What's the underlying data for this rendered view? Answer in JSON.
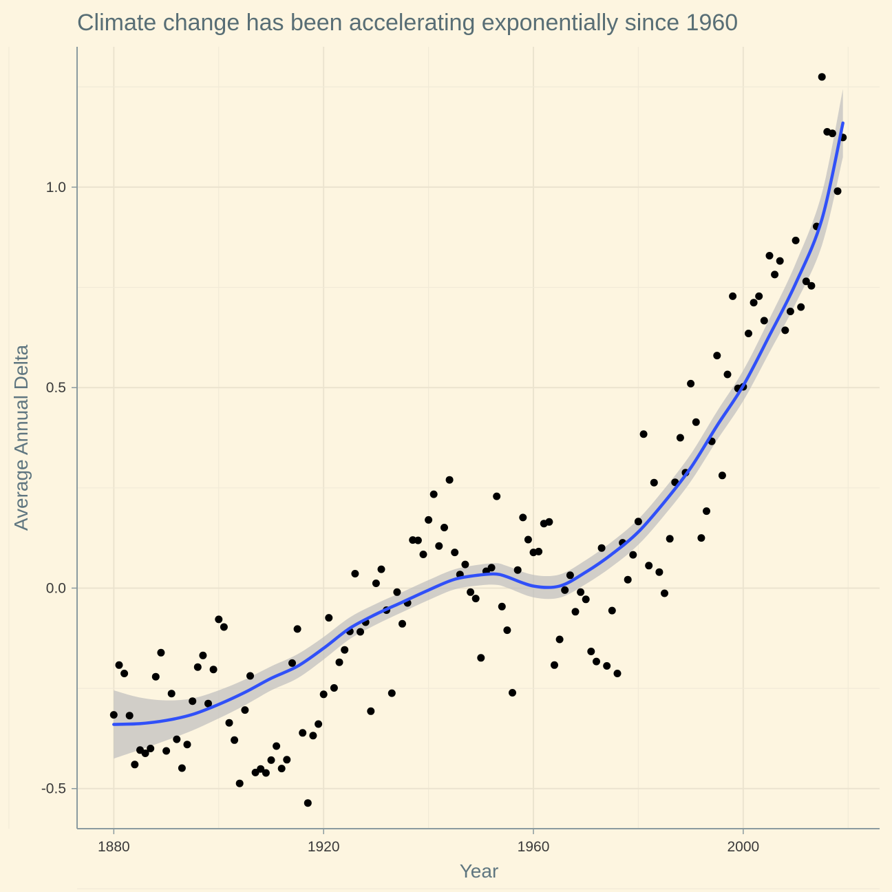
{
  "colors": {
    "background": "#fdf5e0",
    "point": "#000000",
    "smooth_line": "#3050f8",
    "ribbon": "#bdbdbd",
    "title": "#586e75"
  },
  "chart_data": {
    "type": "scatter",
    "title": "Climate change has been accelerating exponentially since 1960",
    "xlabel": "Year",
    "ylabel": "Average Annual Delta",
    "xlim": [
      1873,
      2026
    ],
    "ylim": [
      -0.6,
      1.35
    ],
    "xticks": [
      1880,
      1920,
      1960,
      2000
    ],
    "xtick_labels": [
      "1880",
      "1920",
      "1960",
      "2000"
    ],
    "yticks": [
      -0.5,
      0.0,
      0.5,
      1.0
    ],
    "ytick_labels": [
      "-0.5",
      "0.0",
      "0.5",
      "1.0"
    ],
    "grid": true,
    "series": [
      {
        "type": "scatter",
        "x": [
          1880,
          1881,
          1882,
          1883,
          1884,
          1885,
          1886,
          1887,
          1888,
          1889,
          1890,
          1891,
          1892,
          1893,
          1894,
          1895,
          1896,
          1897,
          1898,
          1899,
          1900,
          1901,
          1902,
          1903,
          1904,
          1905,
          1906,
          1907,
          1908,
          1909,
          1910,
          1911,
          1912,
          1913,
          1914,
          1915,
          1916,
          1917,
          1918,
          1919,
          1920,
          1921,
          1922,
          1923,
          1924,
          1925,
          1926,
          1927,
          1928,
          1929,
          1930,
          1931,
          1932,
          1933,
          1934,
          1935,
          1936,
          1937,
          1938,
          1939,
          1940,
          1941,
          1942,
          1943,
          1944,
          1945,
          1946,
          1947,
          1948,
          1949,
          1950,
          1951,
          1952,
          1953,
          1954,
          1955,
          1956,
          1957,
          1958,
          1959,
          1960,
          1961,
          1962,
          1963,
          1964,
          1965,
          1966,
          1967,
          1968,
          1969,
          1970,
          1971,
          1972,
          1973,
          1974,
          1975,
          1976,
          1977,
          1978,
          1979,
          1980,
          1981,
          1982,
          1983,
          1984,
          1985,
          1986,
          1987,
          1988,
          1989,
          1990,
          1991,
          1992,
          1993,
          1994,
          1995,
          1996,
          1997,
          1998,
          1999,
          2000,
          2001,
          2002,
          2003,
          2004,
          2005,
          2006,
          2007,
          2008,
          2009,
          2010,
          2011,
          2012,
          2013,
          2014,
          2015,
          2016,
          2017,
          2018,
          2019
        ],
        "y": [
          -0.316,
          -0.192,
          -0.213,
          -0.318,
          -0.44,
          -0.404,
          -0.412,
          -0.4,
          -0.221,
          -0.161,
          -0.406,
          -0.263,
          -0.377,
          -0.449,
          -0.39,
          -0.282,
          -0.197,
          -0.168,
          -0.288,
          -0.203,
          -0.078,
          -0.097,
          -0.336,
          -0.379,
          -0.487,
          -0.304,
          -0.219,
          -0.46,
          -0.451,
          -0.461,
          -0.429,
          -0.394,
          -0.45,
          -0.428,
          -0.187,
          -0.102,
          -0.361,
          -0.536,
          -0.368,
          -0.339,
          -0.265,
          -0.074,
          -0.249,
          -0.185,
          -0.154,
          -0.108,
          0.036,
          -0.109,
          -0.085,
          -0.307,
          0.012,
          0.047,
          -0.055,
          -0.262,
          -0.01,
          -0.089,
          -0.037,
          0.12,
          0.119,
          0.084,
          0.17,
          0.234,
          0.105,
          0.151,
          0.27,
          0.089,
          0.034,
          0.059,
          -0.01,
          -0.026,
          -0.174,
          0.042,
          0.051,
          0.229,
          -0.046,
          -0.105,
          -0.261,
          0.045,
          0.176,
          0.121,
          0.089,
          0.091,
          0.161,
          0.165,
          -0.192,
          -0.128,
          -0.005,
          0.032,
          -0.059,
          -0.01,
          -0.028,
          -0.158,
          -0.183,
          0.1,
          -0.194,
          -0.056,
          -0.213,
          0.113,
          0.021,
          0.083,
          0.166,
          0.384,
          0.056,
          0.263,
          0.04,
          -0.013,
          0.123,
          0.264,
          0.375,
          0.288,
          0.51,
          0.414,
          0.125,
          0.192,
          0.366,
          0.58,
          0.281,
          0.533,
          0.728,
          0.498,
          0.502,
          0.635,
          0.712,
          0.728,
          0.667,
          0.829,
          0.782,
          0.816,
          0.643,
          0.69,
          0.867,
          0.701,
          0.765,
          0.754,
          0.902,
          1.275,
          1.138,
          1.134,
          0.99,
          1.124
        ]
      },
      {
        "type": "smooth",
        "method": "loess",
        "x": [
          1880,
          1885,
          1890,
          1895,
          1900,
          1905,
          1910,
          1915,
          1920,
          1925,
          1930,
          1935,
          1940,
          1945,
          1950,
          1953,
          1955,
          1960,
          1965,
          1970,
          1975,
          1980,
          1985,
          1990,
          1995,
          2000,
          2005,
          2010,
          2015,
          2019
        ],
        "y": [
          -0.34,
          -0.338,
          -0.33,
          -0.315,
          -0.29,
          -0.26,
          -0.225,
          -0.195,
          -0.15,
          -0.1,
          -0.065,
          -0.035,
          -0.005,
          0.022,
          0.033,
          0.035,
          0.028,
          0.005,
          0.005,
          0.04,
          0.085,
          0.14,
          0.215,
          0.3,
          0.405,
          0.505,
          0.63,
          0.76,
          0.92,
          1.16
        ],
        "ci_half_width": [
          0.085,
          0.065,
          0.05,
          0.04,
          0.035,
          0.032,
          0.03,
          0.03,
          0.028,
          0.027,
          0.026,
          0.025,
          0.025,
          0.025,
          0.026,
          0.027,
          0.027,
          0.028,
          0.029,
          0.03,
          0.031,
          0.032,
          0.033,
          0.034,
          0.036,
          0.038,
          0.042,
          0.05,
          0.065,
          0.085
        ]
      }
    ]
  }
}
